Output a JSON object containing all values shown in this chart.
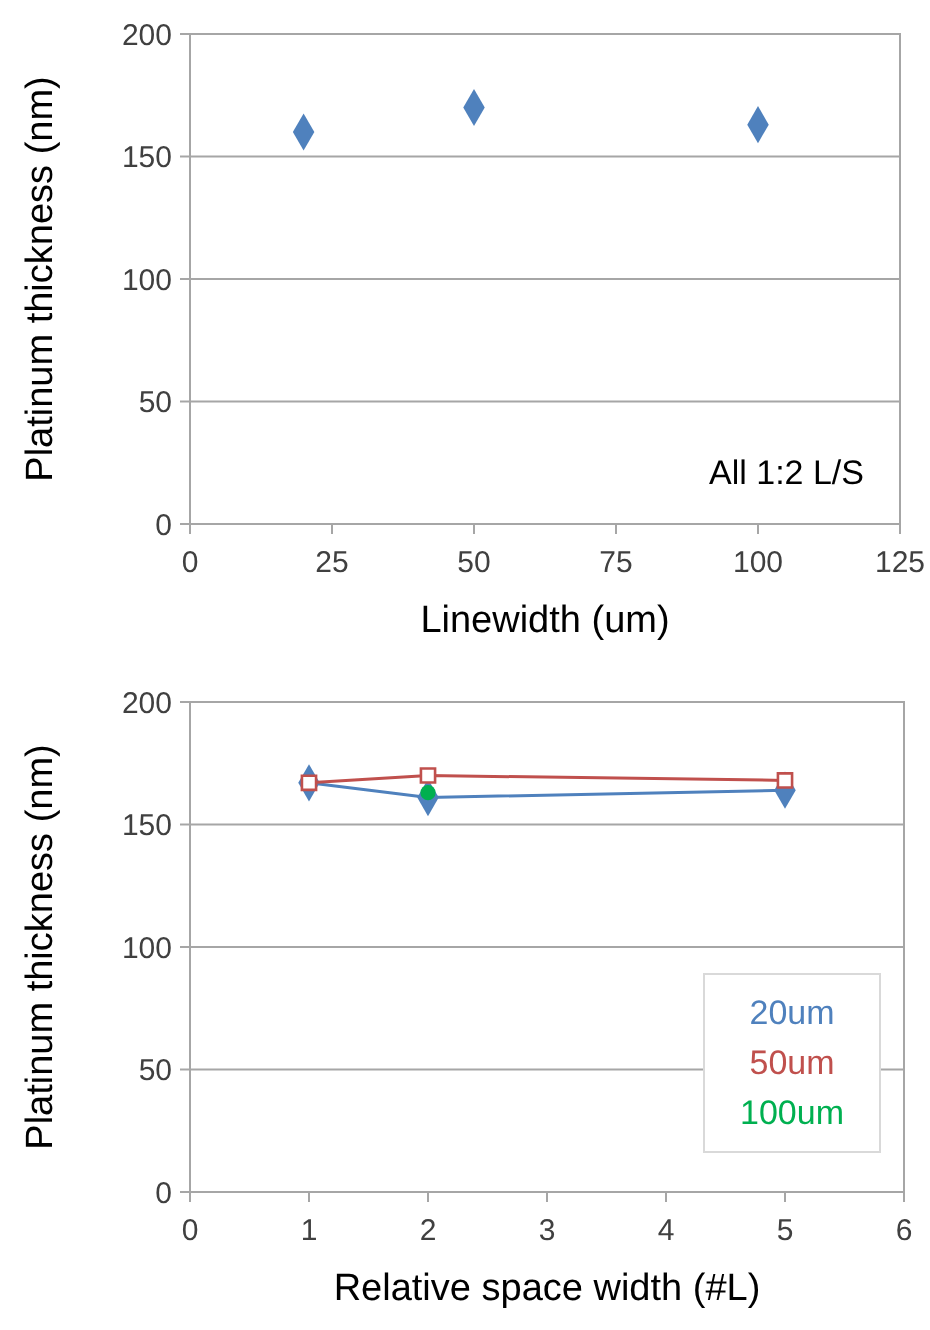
{
  "chart_data": [
    {
      "type": "scatter",
      "xlabel": "Linewidth (um)",
      "ylabel": "Platinum thickness (nm)",
      "x": [
        20,
        50,
        100
      ],
      "series": [
        {
          "color": "#4f81bd",
          "values": [
            160,
            170,
            163
          ]
        }
      ],
      "xlim": [
        0,
        125
      ],
      "xticks": [
        0,
        25,
        50,
        75,
        100,
        125
      ],
      "ylim": [
        0,
        200
      ],
      "yticks": [
        0,
        50,
        100,
        150,
        200
      ],
      "grid": "y",
      "marker": "diamond",
      "annotations": [
        "All 1:2 L/S"
      ]
    },
    {
      "type": "line",
      "xlabel": "Relative space width (#L)",
      "ylabel": "Platinum thickness (nm)",
      "series": [
        {
          "name": "20um",
          "color": "#4f81bd",
          "x": [
            1,
            2,
            5
          ],
          "values": [
            167,
            161,
            164
          ],
          "marker": "diamond"
        },
        {
          "name": "50um",
          "color": "#c0504d",
          "x": [
            1,
            2,
            5
          ],
          "values": [
            167,
            170,
            168
          ],
          "marker": "square"
        },
        {
          "name": "100um",
          "color": "#00b050",
          "type": "scatter",
          "x": [
            2
          ],
          "values": [
            163
          ],
          "marker": "circle"
        }
      ],
      "xlim": [
        0,
        6
      ],
      "xticks": [
        0,
        1,
        2,
        3,
        4,
        5,
        6
      ],
      "ylim": [
        0,
        200
      ],
      "yticks": [
        0,
        50,
        100,
        150,
        200
      ],
      "grid": "y",
      "legend": "bottom right",
      "line_style": "solid"
    }
  ]
}
